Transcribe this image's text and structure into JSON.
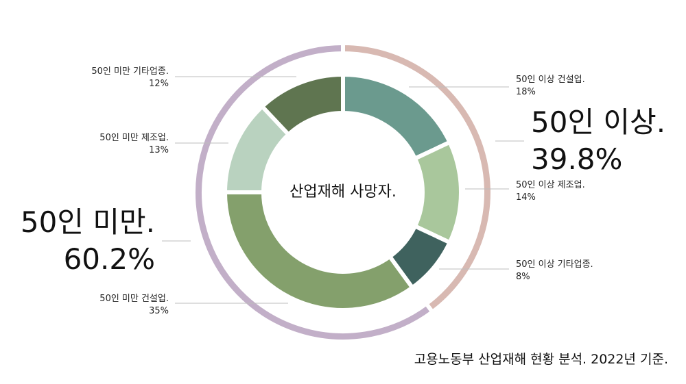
{
  "chart_data": {
    "type": "pie",
    "center_label": "산업재해 사망자.",
    "source": "고용노동부 산업재해 현황 분석. 2022년 기준.",
    "groups": [
      {
        "name": "50인 이상.",
        "value_label": "39.8%",
        "value": 39.8,
        "color": "#d8b9b2"
      },
      {
        "name": "50인 미만.",
        "value_label": "60.2%",
        "value": 60.2,
        "color": "#c2afc8"
      }
    ],
    "slices": [
      {
        "name": "50인 이상 건설업.",
        "value_label": "18%",
        "value": 18,
        "color": "#6b9a8e"
      },
      {
        "name": "50인 이상 제조업.",
        "value_label": "14%",
        "value": 14,
        "color": "#a9c79c"
      },
      {
        "name": "50인 이상 기타업종.",
        "value_label": "8%",
        "value": 8,
        "color": "#3f625e"
      },
      {
        "name": "50인 미만 건설업.",
        "value_label": "35%",
        "value": 35,
        "color": "#84a06c"
      },
      {
        "name": "50인 미만 제조업.",
        "value_label": "13%",
        "value": 13,
        "color": "#b9d2bf"
      },
      {
        "name": "50인 미만 기타업종.",
        "value_label": "12%",
        "value": 12,
        "color": "#5f7550"
      }
    ]
  }
}
